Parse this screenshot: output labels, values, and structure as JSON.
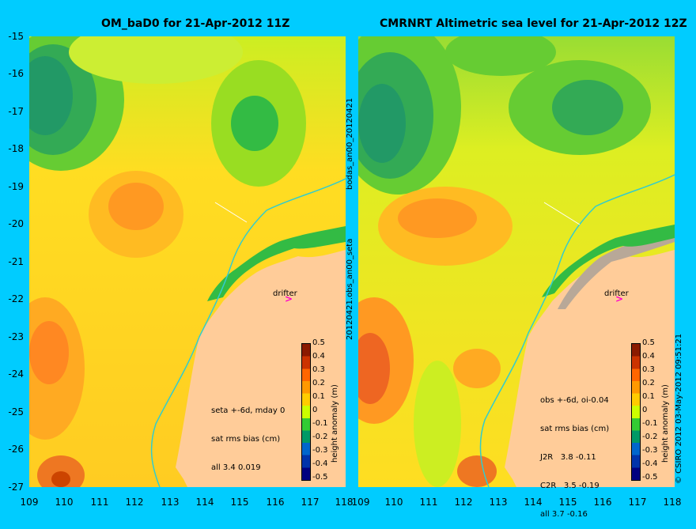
{
  "left_panel": {
    "title": "OM_baD0 for 21-Apr-2012 11Z",
    "stats": [
      "seta +-6d, mday 0",
      "sat rms bias (cm)",
      "all 3.4 0.019"
    ]
  },
  "right_panel": {
    "title": "CMRNRT Altimetric sea level  for 21-Apr-2012 12Z",
    "stats": [
      "obs +-6d, oi-0.04",
      "sat rms bias (cm)",
      "J2R   3.8 -0.11",
      "C2R   3.5 -0.19",
      "all 3.7 -0.16"
    ]
  },
  "y_ticks": [
    "-15",
    "-16",
    "-17",
    "-18",
    "-19",
    "-20",
    "-21",
    "-22",
    "-23",
    "-24",
    "-25",
    "-26",
    "-27"
  ],
  "x_ticks": [
    "109",
    "110",
    "111",
    "112",
    "113",
    "114",
    "115",
    "116",
    "117",
    "118"
  ],
  "colorbar": {
    "label": "height anomaly (m)",
    "ticks": [
      "0.5",
      "0.4",
      "0.3",
      "0.2",
      "0.1",
      "0",
      "-0.1",
      "-0.2",
      "-0.3",
      "-0.4",
      "-0.5"
    ],
    "colors": [
      "#8b1a00",
      "#cc3300",
      "#ff6600",
      "#ff9900",
      "#ffcc00",
      "#ccff00",
      "#33cc33",
      "#009966",
      "#0066cc",
      "#0033aa",
      "#000080"
    ]
  },
  "vertical_labels": {
    "top": "bodas_an00_20120421",
    "bottom": "20120421.obs_an00_seta"
  },
  "drifter_label": "drifter",
  "drifter_symbol": ">",
  "credit": "© CSIRO 2012  03-May-2012 09:51:21",
  "colors": {
    "background": "#00ccff",
    "land": "#ffcc99",
    "coast_shadow": "#c0b0a0"
  }
}
